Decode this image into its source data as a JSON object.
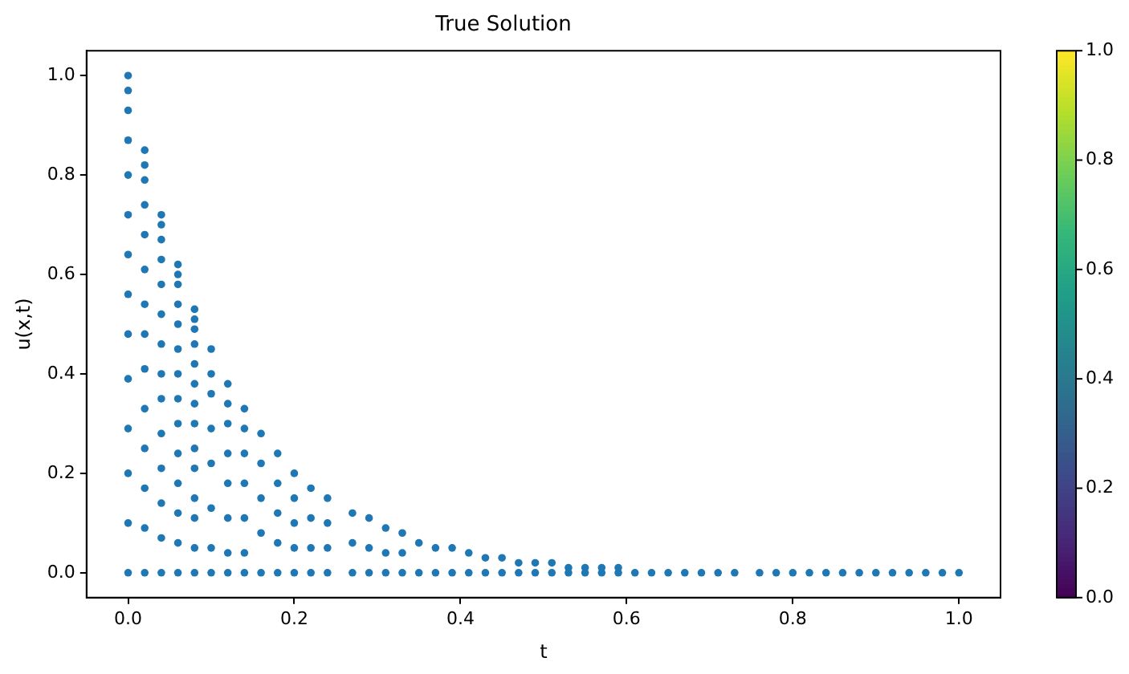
{
  "chart_data": {
    "type": "scatter",
    "title": "True Solution",
    "xlabel": "t",
    "ylabel": "u(x,t)",
    "xlim": [
      -0.05,
      1.05
    ],
    "ylim": [
      -0.05,
      1.05
    ],
    "xticks": [
      {
        "value": 0,
        "label": "0.0"
      },
      {
        "value": 0.2,
        "label": "0.2"
      },
      {
        "value": 0.4,
        "label": "0.4"
      },
      {
        "value": 0.6,
        "label": "0.6"
      },
      {
        "value": 0.8,
        "label": "0.8"
      },
      {
        "value": 1,
        "label": "1.0"
      }
    ],
    "yticks": [
      {
        "value": 0,
        "label": "0.0"
      },
      {
        "value": 0.2,
        "label": "0.2"
      },
      {
        "value": 0.4,
        "label": "0.4"
      },
      {
        "value": 0.6,
        "label": "0.6"
      },
      {
        "value": 0.8,
        "label": "0.8"
      },
      {
        "value": 1,
        "label": "1.0"
      }
    ],
    "clim": [
      0,
      1
    ],
    "cticks": [
      {
        "value": 0,
        "label": "0.0"
      },
      {
        "value": 0.2,
        "label": "0.2"
      },
      {
        "value": 0.4,
        "label": "0.4"
      },
      {
        "value": 0.6,
        "label": "0.6"
      },
      {
        "value": 0.8,
        "label": "0.8"
      },
      {
        "value": 1,
        "label": "1.0"
      }
    ],
    "grid": false,
    "legend": false,
    "marker": "circle",
    "series": [
      {
        "color": "#1f77b4",
        "x": [
          0,
          0,
          0,
          0,
          0,
          0,
          0,
          0,
          0,
          0,
          0,
          0,
          0,
          0,
          0.02,
          0.02,
          0.02,
          0.02,
          0.02,
          0.02,
          0.02,
          0.02,
          0.02,
          0.02,
          0.02,
          0.02,
          0.02,
          0.02,
          0.04,
          0.04,
          0.04,
          0.04,
          0.04,
          0.04,
          0.04,
          0.04,
          0.04,
          0.04,
          0.04,
          0.04,
          0.04,
          0.04,
          0.06,
          0.06,
          0.06,
          0.06,
          0.06,
          0.06,
          0.06,
          0.06,
          0.06,
          0.06,
          0.06,
          0.06,
          0.06,
          0.06,
          0.08,
          0.08,
          0.08,
          0.08,
          0.08,
          0.08,
          0.08,
          0.08,
          0.08,
          0.08,
          0.08,
          0.08,
          0.08,
          0.08,
          0.1,
          0.1,
          0.1,
          0.1,
          0.1,
          0.1,
          0.1,
          0.1,
          0.12,
          0.12,
          0.12,
          0.12,
          0.12,
          0.12,
          0.12,
          0.12,
          0.14,
          0.14,
          0.14,
          0.14,
          0.14,
          0.14,
          0.14,
          0.16,
          0.16,
          0.16,
          0.16,
          0.16,
          0.18,
          0.18,
          0.18,
          0.18,
          0.18,
          0.2,
          0.2,
          0.2,
          0.2,
          0.2,
          0.22,
          0.22,
          0.22,
          0.22,
          0.24,
          0.24,
          0.24,
          0.24,
          0.27,
          0.27,
          0.27,
          0.29,
          0.29,
          0.29,
          0.31,
          0.31,
          0.31,
          0.33,
          0.33,
          0.33,
          0.35,
          0.35,
          0.37,
          0.37,
          0.39,
          0.39,
          0.41,
          0.41,
          0.43,
          0.43,
          0.45,
          0.45,
          0.47,
          0.47,
          0.49,
          0.49,
          0.51,
          0.51,
          0.53,
          0.53,
          0.55,
          0.55,
          0.57,
          0.57,
          0.59,
          0.59,
          0.61,
          0.63,
          0.65,
          0.67,
          0.69,
          0.71,
          0.73,
          0.76,
          0.78,
          0.8,
          0.82,
          0.84,
          0.86,
          0.88,
          0.9,
          0.92,
          0.94,
          0.96,
          0.98,
          1.0
        ],
        "values": [
          1,
          0.97,
          0.93,
          0.87,
          0.8,
          0.72,
          0.64,
          0.56,
          0.48,
          0.39,
          0.29,
          0.2,
          0.1,
          0,
          0.85,
          0.82,
          0.79,
          0.74,
          0.68,
          0.61,
          0.54,
          0.48,
          0.41,
          0.33,
          0.25,
          0.17,
          0.09,
          0,
          0.72,
          0.7,
          0.67,
          0.63,
          0.58,
          0.52,
          0.46,
          0.4,
          0.35,
          0.28,
          0.21,
          0.14,
          0.07,
          0,
          0.62,
          0.6,
          0.58,
          0.54,
          0.5,
          0.45,
          0.4,
          0.35,
          0.3,
          0.24,
          0.18,
          0.12,
          0.06,
          0,
          0.53,
          0.51,
          0.49,
          0.46,
          0.42,
          0.38,
          0.34,
          0.3,
          0.25,
          0.21,
          0.15,
          0.11,
          0.05,
          0,
          0.45,
          0.4,
          0.36,
          0.29,
          0.22,
          0.13,
          0.05,
          0,
          0.38,
          0.34,
          0.3,
          0.24,
          0.18,
          0.11,
          0.04,
          0,
          0.33,
          0.29,
          0.24,
          0.18,
          0.11,
          0.04,
          0,
          0.28,
          0.22,
          0.15,
          0.08,
          0,
          0.24,
          0.18,
          0.12,
          0.06,
          0,
          0.2,
          0.15,
          0.1,
          0.05,
          0,
          0.17,
          0.11,
          0.05,
          0,
          0.15,
          0.1,
          0.05,
          0,
          0.12,
          0.06,
          0,
          0.11,
          0.05,
          0,
          0.09,
          0.04,
          0,
          0.08,
          0.04,
          0,
          0.06,
          0,
          0.05,
          0,
          0.05,
          0,
          0.04,
          0,
          0.03,
          0,
          0.03,
          0,
          0.02,
          0,
          0.02,
          0,
          0.02,
          0,
          0.01,
          0,
          0.01,
          0,
          0.01,
          0,
          0.01,
          0,
          0,
          0,
          0,
          0,
          0,
          0,
          0,
          0,
          0,
          0,
          0,
          0,
          0,
          0,
          0,
          0,
          0,
          0,
          0,
          0
        ]
      }
    ]
  }
}
